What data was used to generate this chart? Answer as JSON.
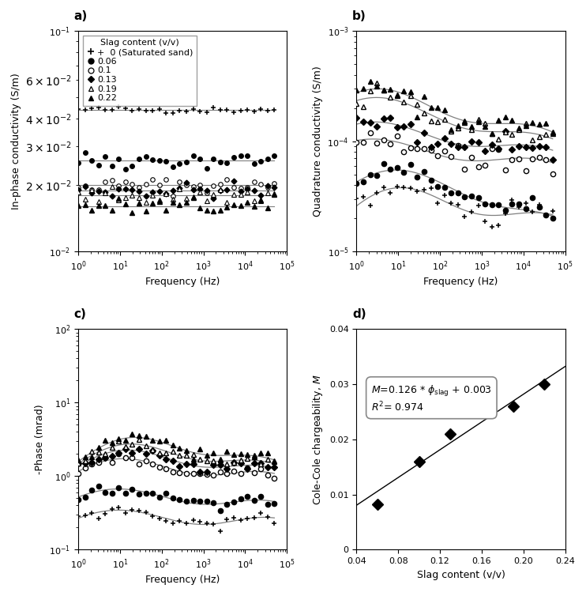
{
  "fig_size": [
    7.42,
    7.54
  ],
  "dpi": 100,
  "legend_labels": [
    "0 (Saturated sand)",
    "0.06",
    "0.1",
    "0.13",
    "0.19",
    "0.22"
  ],
  "panel_a": {
    "ylabel": "In-phase conductivity (S/m)",
    "xlabel": "Frequency (Hz)",
    "ylim": [
      0.01,
      0.1
    ],
    "xlim": [
      1,
      100000
    ],
    "val_plus": 0.044,
    "val_fc": 0.026,
    "val_oc": 0.02,
    "val_fd": 0.019,
    "val_ot": 0.018,
    "val_ft": 0.016
  },
  "panel_b": {
    "ylabel": "Quadrature conductivity (S/m)",
    "xlabel": "Frequency (Hz)",
    "ylim": [
      1e-05,
      0.001
    ],
    "xlim": [
      1,
      100000
    ]
  },
  "panel_c": {
    "ylabel": "-Phase (mrad)",
    "xlabel": "Frequency (Hz)",
    "ylim": [
      0.1,
      100
    ],
    "xlim": [
      1,
      100000
    ]
  },
  "panel_d": {
    "ylabel": "Cole-Cole chargeability, $M$",
    "xlabel": "Slag content (v/v)",
    "xlim": [
      0.04,
      0.24
    ],
    "ylim": [
      0.0,
      0.04
    ],
    "scatter_x": [
      0.06,
      0.1,
      0.13,
      0.19,
      0.22
    ],
    "scatter_y": [
      0.0082,
      0.016,
      0.021,
      0.026,
      0.03
    ],
    "line_x": [
      0.04,
      0.24
    ],
    "line_y": [
      0.00804,
      0.03324
    ]
  }
}
